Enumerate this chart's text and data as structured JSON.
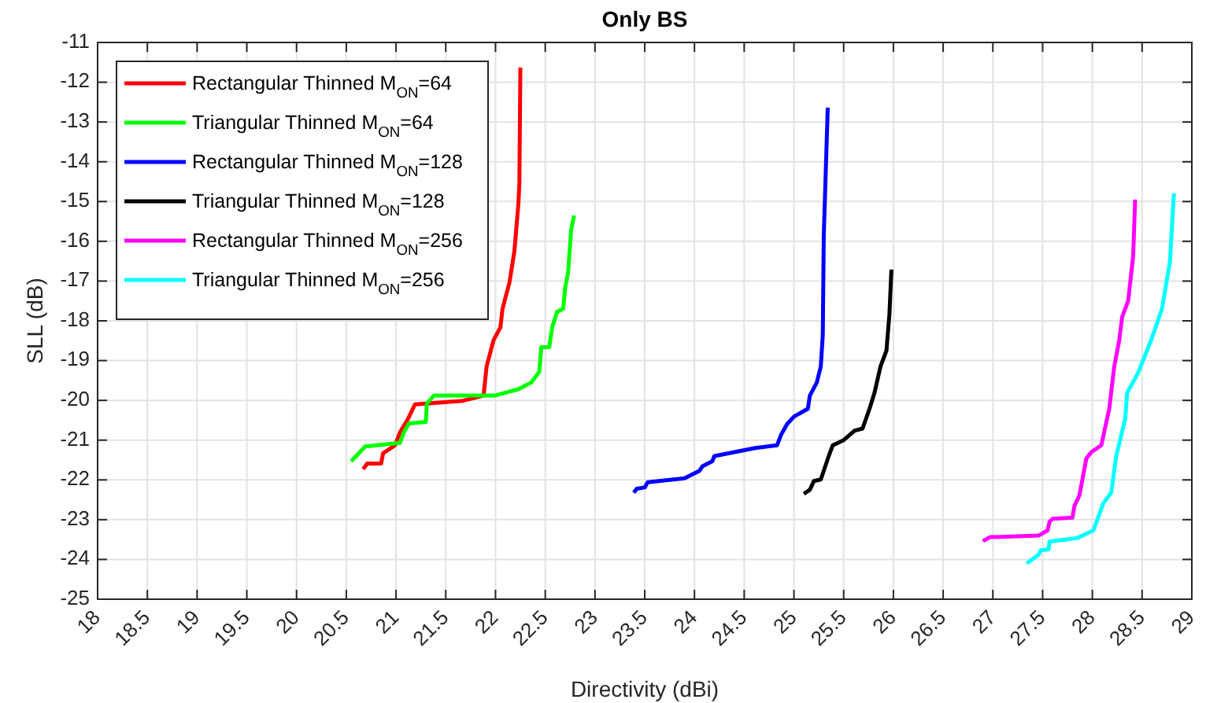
{
  "chart_data": {
    "type": "line",
    "title": "Only BS",
    "xlabel": "Directivity (dBi)",
    "ylabel": "SLL (dB)",
    "xlim": [
      18,
      29
    ],
    "xticks": [
      18,
      18.5,
      19,
      19.5,
      20,
      20.5,
      21,
      21.5,
      22,
      22.5,
      23,
      23.5,
      24,
      24.5,
      25,
      25.5,
      26,
      26.5,
      27,
      27.5,
      28,
      28.5,
      29
    ],
    "ylim": [
      -25,
      -11
    ],
    "yticks": [
      -25,
      -24,
      -23,
      -22,
      -21,
      -20,
      -19,
      -18,
      -17,
      -16,
      -15,
      -14,
      -13,
      -12,
      -11
    ],
    "grid": true,
    "legend": "top left",
    "line_style": "solid",
    "marker": "none",
    "series": [
      {
        "name": "Rectangular Thinned M$_{ON}$=64",
        "color": "#ff0000",
        "x": [
          20.67,
          20.71,
          20.85,
          20.87,
          20.99,
          21.04,
          21.12,
          21.19,
          21.3,
          21.67,
          21.88,
          21.91,
          21.98,
          22.05,
          22.07,
          22.14,
          22.19,
          22.23,
          22.24,
          22.25
        ],
        "values": [
          -21.73,
          -21.59,
          -21.59,
          -21.33,
          -21.13,
          -20.8,
          -20.47,
          -20.1,
          -20.08,
          -20.01,
          -19.88,
          -19.15,
          -18.49,
          -18.16,
          -17.7,
          -17.04,
          -16.25,
          -15.06,
          -14.54,
          -11.63
        ]
      },
      {
        "name": "Triangular Thinned M$_{ON}$=64",
        "color": "#00ff00",
        "x": [
          20.55,
          20.69,
          21.04,
          21.08,
          21.13,
          21.3,
          21.31,
          21.38,
          21.99,
          22.23,
          22.36,
          22.44,
          22.46,
          22.54,
          22.57,
          22.62,
          22.68,
          22.7,
          22.73,
          22.76,
          22.79
        ],
        "values": [
          -21.53,
          -21.16,
          -21.07,
          -20.8,
          -20.58,
          -20.54,
          -20.08,
          -19.88,
          -19.88,
          -19.72,
          -19.55,
          -19.28,
          -18.66,
          -18.66,
          -18.16,
          -17.77,
          -17.7,
          -17.17,
          -16.78,
          -15.72,
          -15.35
        ]
      },
      {
        "name": "Rectangular Thinned M$_{ON}$=128",
        "color": "#0000ff",
        "x": [
          23.39,
          23.42,
          23.5,
          23.53,
          23.9,
          24.05,
          24.08,
          24.18,
          24.2,
          24.61,
          24.83,
          24.87,
          24.93,
          25.0,
          25.14,
          25.16,
          25.23,
          25.27,
          25.29,
          25.3,
          25.34
        ],
        "values": [
          -22.32,
          -22.22,
          -22.19,
          -22.06,
          -21.96,
          -21.77,
          -21.66,
          -21.53,
          -21.4,
          -21.2,
          -21.13,
          -20.87,
          -20.6,
          -20.41,
          -20.21,
          -19.88,
          -19.55,
          -19.15,
          -18.36,
          -15.85,
          -12.64
        ]
      },
      {
        "name": "Triangular Thinned M$_{ON}$=128",
        "color": "#000000",
        "x": [
          25.1,
          25.16,
          25.2,
          25.27,
          25.35,
          25.39,
          25.5,
          25.61,
          25.69,
          25.76,
          25.81,
          25.87,
          25.93,
          25.96,
          25.98
        ],
        "values": [
          -22.35,
          -22.25,
          -22.03,
          -21.99,
          -21.4,
          -21.13,
          -21.0,
          -20.76,
          -20.71,
          -20.21,
          -19.81,
          -19.15,
          -18.75,
          -17.83,
          -16.71
        ]
      },
      {
        "name": "Rectangular Thinned M$_{ON}$=256",
        "color": "#ff00ff",
        "x": [
          26.9,
          26.97,
          27.46,
          27.55,
          27.57,
          27.6,
          27.8,
          27.82,
          27.87,
          27.94,
          27.99,
          28.09,
          28.17,
          28.22,
          28.27,
          28.3,
          28.36,
          28.41,
          28.43
        ],
        "values": [
          -23.54,
          -23.44,
          -23.4,
          -23.27,
          -23.05,
          -22.98,
          -22.95,
          -22.65,
          -22.39,
          -21.46,
          -21.3,
          -21.13,
          -20.21,
          -19.15,
          -18.49,
          -17.9,
          -17.5,
          -16.38,
          -14.95
        ]
      },
      {
        "name": "Triangular Thinned M$_{ON}$=256",
        "color": "#00ffff",
        "x": [
          27.34,
          27.46,
          27.48,
          27.56,
          27.57,
          27.85,
          28.01,
          28.11,
          28.19,
          28.24,
          28.33,
          28.35,
          28.46,
          28.59,
          28.7,
          28.78,
          28.82
        ],
        "values": [
          -24.1,
          -23.88,
          -23.77,
          -23.75,
          -23.55,
          -23.46,
          -23.27,
          -22.59,
          -22.32,
          -21.4,
          -20.47,
          -19.81,
          -19.31,
          -18.49,
          -17.7,
          -16.51,
          -14.79
        ]
      }
    ]
  }
}
